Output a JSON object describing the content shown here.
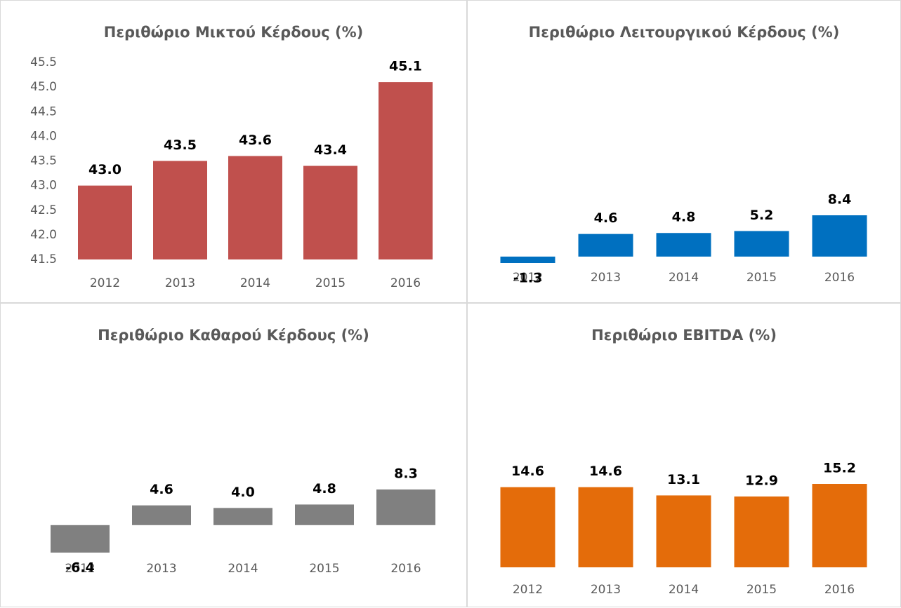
{
  "chart_data": [
    {
      "type": "bar",
      "title": "Περιθώριο Μικτού Κέρδους (%)",
      "categories": [
        "2012",
        "2013",
        "2014",
        "2015",
        "2016"
      ],
      "values": [
        43.0,
        43.5,
        43.6,
        43.4,
        45.1
      ],
      "value_labels": [
        "43.0",
        "43.5",
        "43.6",
        "43.4",
        "45.1"
      ],
      "color": "#c0504d",
      "ylim": [
        41.5,
        45.5
      ],
      "yticks": [
        41.5,
        {
          "value": 42,
          "label": "42.0"
        },
        42.5,
        {
          "value": 43,
          "label": "43.0"
        },
        43.5,
        {
          "value": 44,
          "label": "44.0"
        },
        44.5,
        {
          "value": 45,
          "label": "45.0"
        },
        45.5
      ]
    },
    {
      "type": "bar",
      "title": "Περιθώριο Λειτουργικού Κέρδους (%)",
      "categories": [
        "2012",
        "2013",
        "2014",
        "2015",
        "2016"
      ],
      "values": [
        -1.3,
        4.6,
        4.8,
        5.2,
        8.4
      ],
      "color": "#0070c0"
    },
    {
      "type": "bar",
      "title": "Περιθώριο Καθαρού Κέρδους (%)",
      "categories": [
        "2012",
        "2013",
        "2014",
        "2015",
        "2016"
      ],
      "values": [
        -6.4,
        4.6,
        4.0,
        4.8,
        8.3
      ],
      "value_labels": [
        "-6.4",
        "4.6",
        "4.0",
        "4.8",
        "8.3"
      ],
      "color": "#808080"
    },
    {
      "type": "bar",
      "title": "Περιθώριο EBITDA (%)",
      "categories": [
        "2012",
        "2013",
        "2014",
        "2015",
        "2016"
      ],
      "values": [
        14.6,
        14.6,
        13.1,
        12.9,
        15.2
      ],
      "color": "#e46c0a"
    }
  ]
}
